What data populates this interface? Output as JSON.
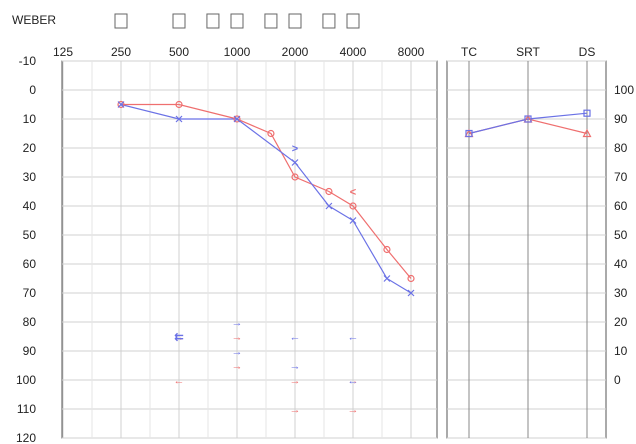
{
  "weber": {
    "label": "WEBER",
    "freq_boxes": [
      250,
      500,
      750,
      1000,
      1500,
      2000,
      3000,
      4000
    ]
  },
  "chart_data": [
    {
      "type": "line",
      "title": "",
      "x_scale": "log2",
      "x_ticks": [
        125,
        250,
        500,
        1000,
        2000,
        4000,
        8000
      ],
      "y_ticks": [
        -10,
        0,
        10,
        20,
        30,
        40,
        50,
        60,
        70,
        80,
        90,
        100,
        110,
        120
      ],
      "ylim": [
        -10,
        120
      ],
      "y_inverted": true,
      "grid": true,
      "colors": {
        "red": "#ef6f6f",
        "blue": "#6b72e6"
      },
      "series": [
        {
          "color": "red",
          "marker": "circle",
          "points": [
            [
              250,
              5
            ],
            [
              500,
              5
            ],
            [
              1000,
              10
            ],
            [
              1500,
              15
            ],
            [
              2000,
              30
            ],
            [
              3000,
              35
            ],
            [
              4000,
              40
            ],
            [
              6000,
              55
            ],
            [
              8000,
              65
            ]
          ]
        },
        {
          "color": "blue",
          "marker": "x",
          "points": [
            [
              250,
              5
            ],
            [
              500,
              10
            ],
            [
              1000,
              10
            ],
            [
              2000,
              25
            ],
            [
              3000,
              40
            ],
            [
              4000,
              45
            ],
            [
              6000,
              65
            ],
            [
              8000,
              70
            ]
          ]
        }
      ],
      "symbols": [
        {
          "x": 2000,
          "y": 20,
          "color": "blue",
          "glyph": ">"
        },
        {
          "x": 4000,
          "y": 35,
          "color": "red",
          "glyph": "<"
        },
        {
          "x": 500,
          "y": 85,
          "color": "red",
          "glyph": "→"
        },
        {
          "x": 500,
          "y": 85,
          "color": "blue",
          "glyph": "⇇"
        },
        {
          "x": 1000,
          "y": 80,
          "color": "blue",
          "glyph": "→"
        },
        {
          "x": 1000,
          "y": 85,
          "color": "red",
          "glyph": "→"
        },
        {
          "x": 1000,
          "y": 90,
          "color": "blue",
          "glyph": "→"
        },
        {
          "x": 1000,
          "y": 95,
          "color": "red",
          "glyph": "→"
        },
        {
          "x": 500,
          "y": 100,
          "color": "red",
          "glyph": "←"
        },
        {
          "x": 2000,
          "y": 85,
          "color": "blue",
          "glyph": "←"
        },
        {
          "x": 2000,
          "y": 95,
          "color": "blue",
          "glyph": "→"
        },
        {
          "x": 2000,
          "y": 100,
          "color": "red",
          "glyph": "→"
        },
        {
          "x": 2000,
          "y": 110,
          "color": "red",
          "glyph": "→"
        },
        {
          "x": 4000,
          "y": 85,
          "color": "blue",
          "glyph": "←"
        },
        {
          "x": 4000,
          "y": 100,
          "color": "red",
          "glyph": "→"
        },
        {
          "x": 4000,
          "y": 100,
          "color": "blue",
          "glyph": "←"
        },
        {
          "x": 4000,
          "y": 110,
          "color": "red",
          "glyph": "→"
        }
      ]
    },
    {
      "type": "line",
      "title": "",
      "categories": [
        "TC",
        "SRT",
        "DS"
      ],
      "y_ticks_right": [
        0,
        10,
        20,
        30,
        40,
        50,
        60,
        70,
        80,
        90,
        100
      ],
      "ylim": [
        -10,
        120
      ],
      "y_inverted": true,
      "series": [
        {
          "color": "red",
          "marker": "triangle",
          "values": [
            15,
            10,
            15
          ]
        },
        {
          "color": "blue",
          "marker": "square",
          "values": [
            15,
            10,
            8
          ]
        }
      ]
    }
  ]
}
